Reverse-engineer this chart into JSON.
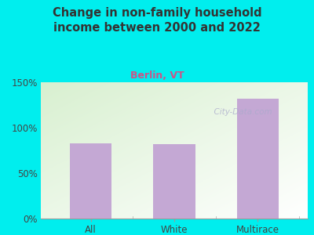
{
  "title": "Change in non-family household\nincome between 2000 and 2022",
  "subtitle": "Berlin, VT",
  "categories": [
    "All",
    "White",
    "Multirace"
  ],
  "values": [
    83,
    82,
    132
  ],
  "bar_color": "#C4A8D4",
  "outer_bg": "#00EEEE",
  "title_color": "#333333",
  "subtitle_color": "#CC5588",
  "tick_label_color": "#444444",
  "ylim": [
    0,
    150
  ],
  "yticks": [
    0,
    50,
    100,
    150
  ],
  "ytick_labels": [
    "0%",
    "50%",
    "100%",
    "150%"
  ],
  "watermark": "  City-Data.com",
  "watermark_color": "#aaaacc",
  "plot_bg_color1": "#d8f0d0",
  "plot_bg_color2": "#ffffff"
}
